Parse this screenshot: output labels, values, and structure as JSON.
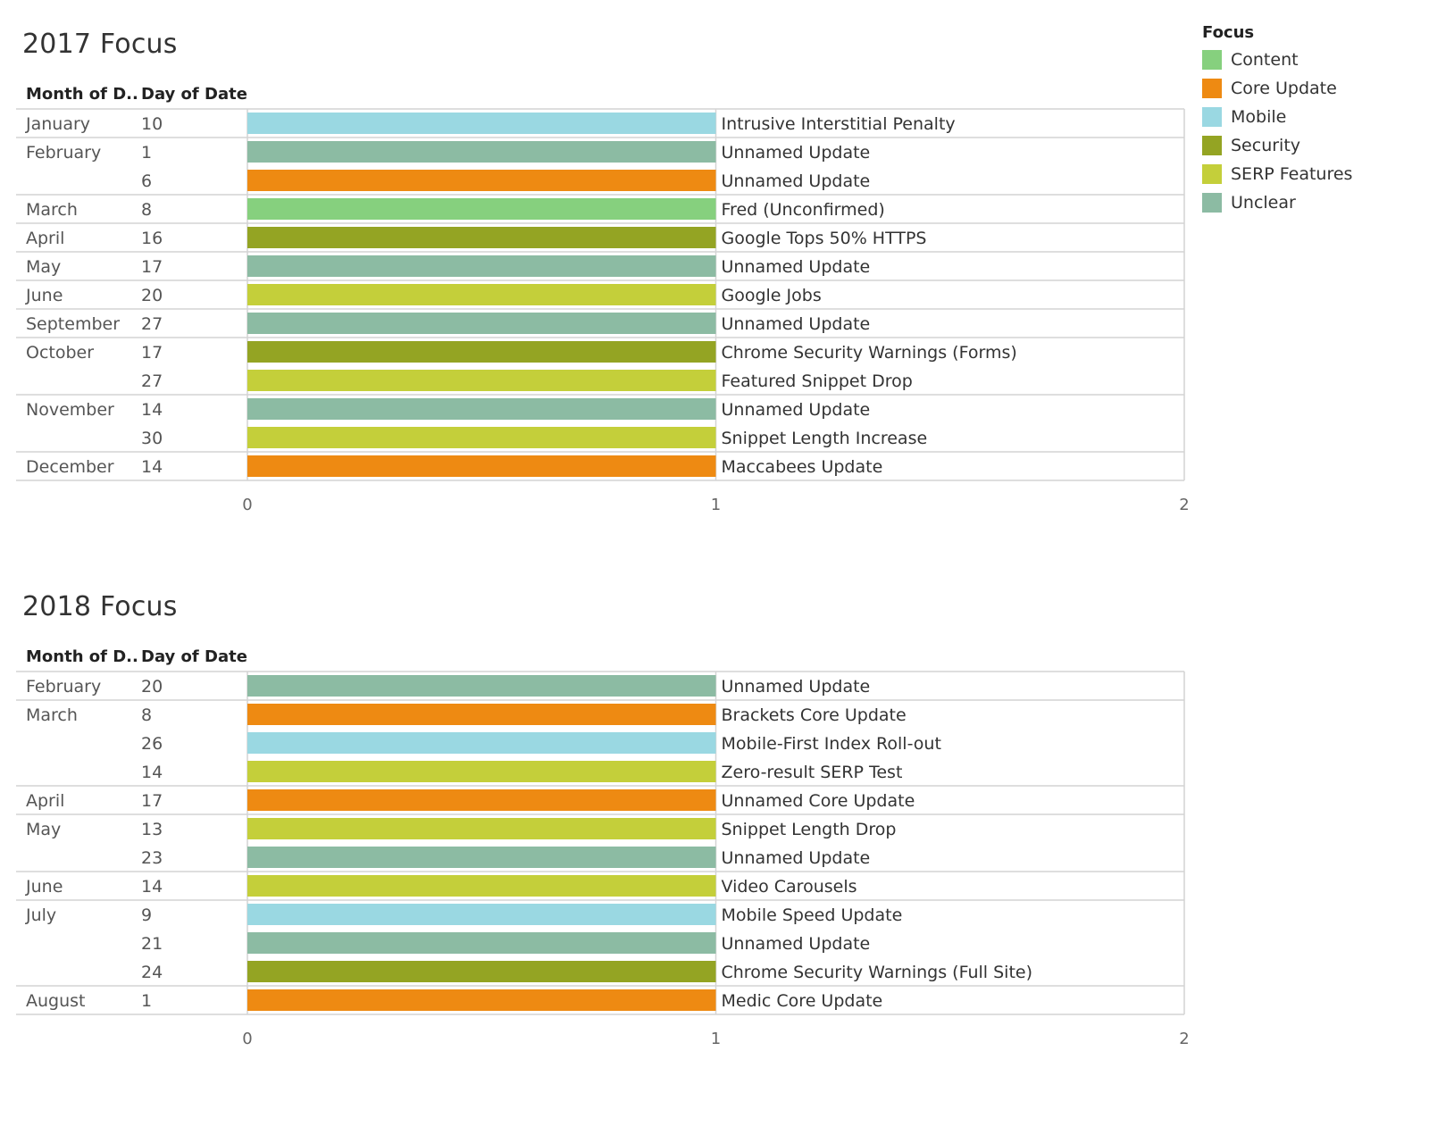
{
  "legend": {
    "title": "Focus",
    "items": [
      {
        "label": "Content",
        "color": "#86d07e"
      },
      {
        "label": "Core Update",
        "color": "#ee8a12"
      },
      {
        "label": "Mobile",
        "color": "#9ad8e2"
      },
      {
        "label": "Security",
        "color": "#94a423"
      },
      {
        "label": "SERP Features",
        "color": "#c4cf3a"
      },
      {
        "label": "Unclear",
        "color": "#8cbba3"
      }
    ]
  },
  "chart_data": [
    {
      "type": "bar",
      "title": "2017 Focus",
      "row_headers": [
        "Month of D..",
        "Day of Date"
      ],
      "xlim": [
        0,
        2
      ],
      "x_ticks": [
        "0",
        "1",
        "2"
      ],
      "rows": [
        {
          "month": "January",
          "day": "10",
          "label": "Intrusive Interstitial Penalty",
          "focus": "Mobile",
          "value": 1
        },
        {
          "month": "February",
          "day": "1",
          "label": "Unnamed Update",
          "focus": "Unclear",
          "value": 1
        },
        {
          "month": "",
          "day": "6",
          "label": "Unnamed Update",
          "focus": "Core Update",
          "value": 1
        },
        {
          "month": "March",
          "day": "8",
          "label": "Fred (Unconfirmed)",
          "focus": "Content",
          "value": 1
        },
        {
          "month": "April",
          "day": "16",
          "label": "Google Tops 50% HTTPS",
          "focus": "Security",
          "value": 1
        },
        {
          "month": "May",
          "day": "17",
          "label": "Unnamed Update",
          "focus": "Unclear",
          "value": 1
        },
        {
          "month": "June",
          "day": "20",
          "label": "Google Jobs",
          "focus": "SERP Features",
          "value": 1
        },
        {
          "month": "September",
          "day": "27",
          "label": "Unnamed Update",
          "focus": "Unclear",
          "value": 1
        },
        {
          "month": "October",
          "day": "17",
          "label": "Chrome Security Warnings (Forms)",
          "focus": "Security",
          "value": 1
        },
        {
          "month": "",
          "day": "27",
          "label": "Featured Snippet Drop",
          "focus": "SERP Features",
          "value": 1
        },
        {
          "month": "November",
          "day": "14",
          "label": "Unnamed Update",
          "focus": "Unclear",
          "value": 1
        },
        {
          "month": "",
          "day": "30",
          "label": "Snippet Length Increase",
          "focus": "SERP Features",
          "value": 1
        },
        {
          "month": "December",
          "day": "14",
          "label": "Maccabees Update",
          "focus": "Core Update",
          "value": 1
        }
      ]
    },
    {
      "type": "bar",
      "title": "2018 Focus",
      "row_headers": [
        "Month of D..",
        "Day of Date"
      ],
      "xlim": [
        0,
        2
      ],
      "x_ticks": [
        "0",
        "1",
        "2"
      ],
      "rows": [
        {
          "month": "February",
          "day": "20",
          "label": "Unnamed Update",
          "focus": "Unclear",
          "value": 1
        },
        {
          "month": "March",
          "day": "8",
          "label": "Brackets Core Update",
          "focus": "Core Update",
          "value": 1
        },
        {
          "month": "",
          "day": "26",
          "label": "Mobile-First Index Roll-out",
          "focus": "Mobile",
          "value": 1
        },
        {
          "month": "",
          "day": "14",
          "label": "Zero-result SERP Test",
          "focus": "SERP Features",
          "value": 1
        },
        {
          "month": "April",
          "day": "17",
          "label": "Unnamed Core Update",
          "focus": "Core Update",
          "value": 1
        },
        {
          "month": "May",
          "day": "13",
          "label": "Snippet Length Drop",
          "focus": "SERP Features",
          "value": 1
        },
        {
          "month": "",
          "day": "23",
          "label": "Unnamed Update",
          "focus": "Unclear",
          "value": 1
        },
        {
          "month": "June",
          "day": "14",
          "label": "Video Carousels",
          "focus": "SERP Features",
          "value": 1
        },
        {
          "month": "July",
          "day": "9",
          "label": "Mobile Speed Update",
          "focus": "Mobile",
          "value": 1
        },
        {
          "month": "",
          "day": "21",
          "label": "Unnamed Update",
          "focus": "Unclear",
          "value": 1
        },
        {
          "month": "",
          "day": "24",
          "label": "Chrome Security Warnings (Full Site)",
          "focus": "Security",
          "value": 1
        },
        {
          "month": "August",
          "day": "1",
          "label": "Medic Core Update",
          "focus": "Core Update",
          "value": 1
        }
      ]
    }
  ]
}
